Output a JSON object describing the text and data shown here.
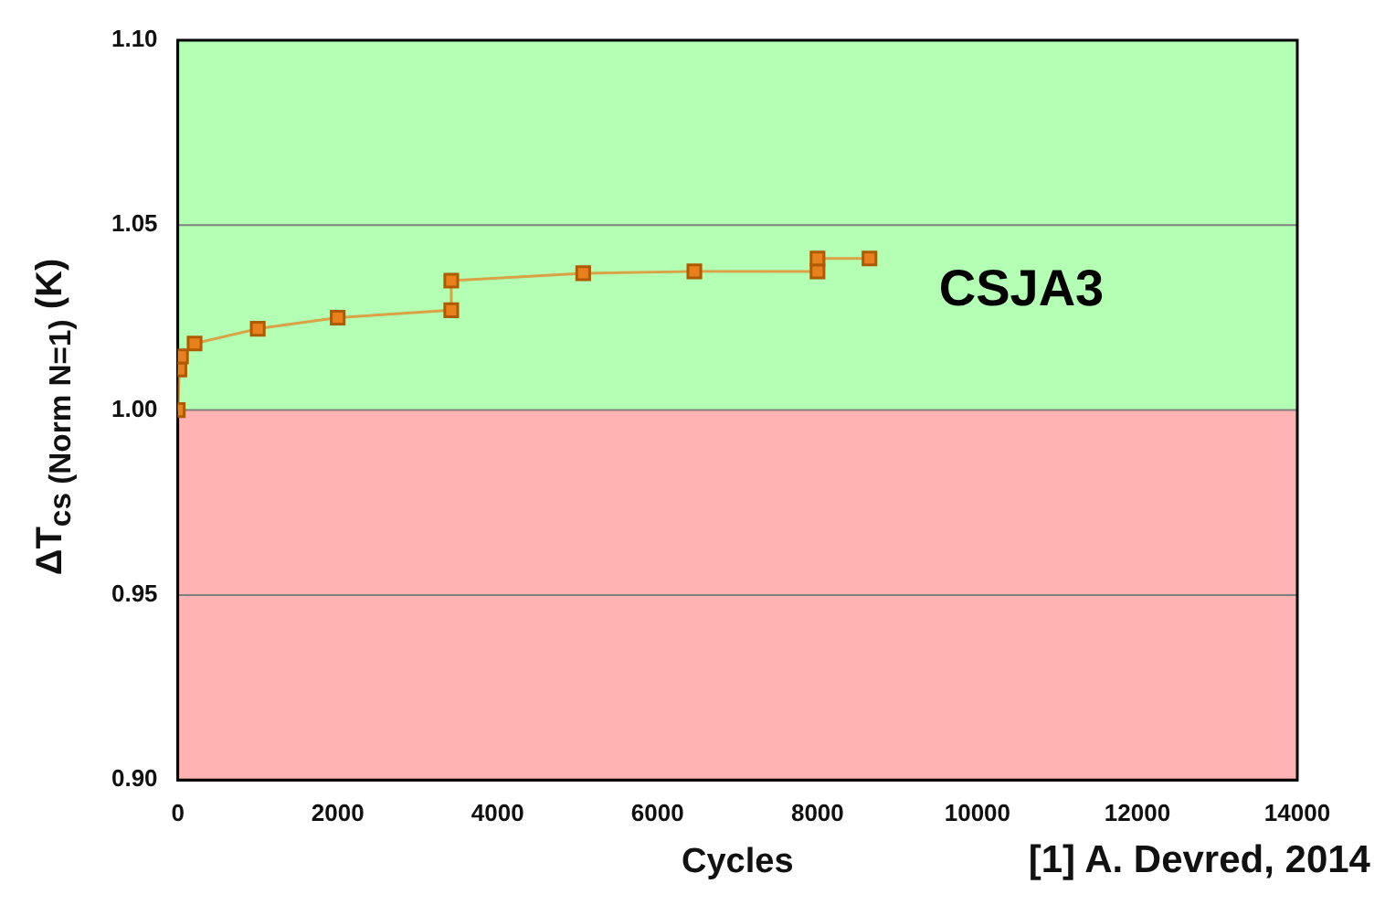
{
  "chart_data": {
    "type": "line",
    "ylabel": "ΔT$_{cs (Norm N=1)}$ (K)",
    "xlabel": "Cycles",
    "x": [
      0,
      20,
      40,
      210,
      1000,
      2000,
      3420,
      3420,
      5070,
      6460,
      8000,
      8000,
      8650
    ],
    "series": [
      {
        "name": "CSJA3",
        "color": "#e8801c",
        "values": [
          1.0,
          1.011,
          1.0145,
          1.018,
          1.022,
          1.025,
          1.027,
          1.035,
          1.037,
          1.0375,
          1.0375,
          1.041,
          1.041
        ]
      }
    ],
    "xlim": [
      0,
      14000
    ],
    "xticks": [
      0,
      2000,
      4000,
      6000,
      8000,
      10000,
      12000,
      14000
    ],
    "ylim": [
      0.9,
      1.1
    ],
    "yticks": [
      {
        "value": 0.9,
        "label": "0.90"
      },
      {
        "value": 0.95,
        "label": "0.95"
      },
      {
        "value": 1.0,
        "label": "1.00"
      },
      {
        "value": 1.05,
        "label": "1.05"
      },
      {
        "value": 1.1,
        "label": "1.10"
      }
    ],
    "bands": [
      {
        "axis": "y",
        "from": 1.0,
        "to": 1.1,
        "color": "#b3ffb3"
      },
      {
        "axis": "y",
        "from": 0.9,
        "to": 1.0,
        "color": "#ffb3b3"
      }
    ],
    "grid": "y",
    "legend": false,
    "marker": "square",
    "line_style": "solid",
    "annotations": [
      "[1] A. Devred, 2014"
    ]
  }
}
